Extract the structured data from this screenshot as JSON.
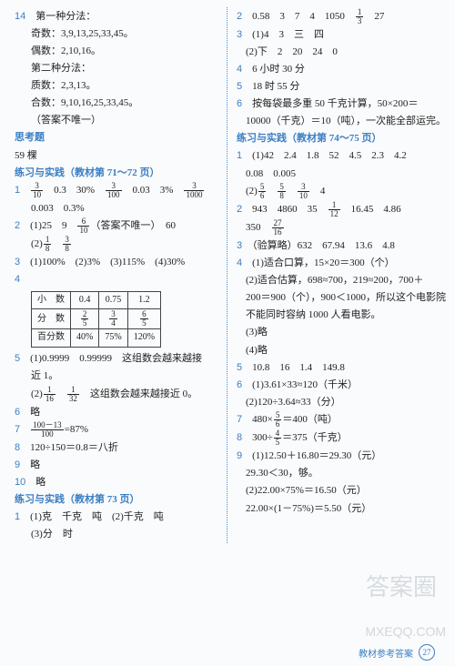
{
  "left": {
    "l14": "14",
    "l14a": "第一种分法：",
    "l14b": "奇数：3,9,13,25,33,45。",
    "l14c": "偶数：2,10,16。",
    "l14d": "第二种分法：",
    "l14e": "质数：2,3,13。",
    "l14f": "合数：9,10,16,25,33,45。",
    "l14g": "（答案不唯一）",
    "sk": "思考题",
    "sk1": "59 棵",
    "ex7172": "练习与实践（教材第 71～72 页）",
    "q1n": "1",
    "q1a": "　0.3　30%　",
    "q1b": "　0.03　3%　",
    "q1c": "0.003　0.3%",
    "q2n": "2",
    "q2a": "(1)25　9　",
    "q2a2": "（答案不唯一）　60",
    "q2b": "(2)",
    "q3n": "3",
    "q3a": "(1)100%　(2)3%　(3)115%　(4)30%",
    "q4n": "4",
    "tbl": {
      "r1": [
        "小　数",
        "0.4",
        "0.75",
        "1.2"
      ],
      "r2": [
        "分　数",
        "2/5",
        "3/4",
        "6/5"
      ],
      "r3": [
        "百分数",
        "40%",
        "75%",
        "120%"
      ]
    },
    "q5n": "5",
    "q5a": "(1)0.9999　0.99999　这组数会越来越接",
    "q5a2": "近 1。",
    "q5b": "(2)",
    "q5b2": "　这组数会越来越接近 0。",
    "q6n": "6",
    "q6a": "略",
    "q7n": "7",
    "q7a": "=87%",
    "q8n": "8",
    "q8a": "120÷150＝0.8＝八折",
    "q9n": "9",
    "q9a": "略",
    "q10n": "10",
    "q10a": "略",
    "ex73": "练习与实践（教材第 73 页）",
    "p1n": "1",
    "p1a": "(1)克　千克　吨　(2)千克　吨",
    "p1b": "(3)分　时"
  },
  "right": {
    "r2n": "2",
    "r2a": "0.58　3　7　4　1050　",
    "r2a2": "　27",
    "r3n": "3",
    "r3a": "(1)4　3　三　四",
    "r3b": "(2)下　2　20　24　0",
    "r4n": "4",
    "r4a": "6 小时 30 分",
    "r5n": "5",
    "r5a": "18 时 55 分",
    "r6n": "6",
    "r6a": "按每袋最多重 50 千克计算，50×200＝",
    "r6b": "10000（千克）＝10（吨），一次能全部运完。",
    "ex7475": "练习与实践（教材第 74～75 页）",
    "s1n": "1",
    "s1a": "(1)42　2.4　1.8　52　4.5　2.3　4.2",
    "s1b": "0.08　0.005",
    "s1c": "(2)",
    "s1c2": "　4",
    "s2n": "2",
    "s2a": "943　4860　35　",
    "s2a2": "　16.45　4.86",
    "s2b": "350　",
    "s3n": "3",
    "s3a": "（验算略）632　67.94　13.6　4.8",
    "s4n": "4",
    "s4a": "(1)适合口算，15×20＝300（个）",
    "s4b": "(2)适合估算，698≈700，219≈200，700＋",
    "s4c": "200＝900（个），900＜1000，所以这个电影院",
    "s4d": "不能同时容纳 1000 人看电影。",
    "s4e": "(3)略",
    "s4f": "(4)略",
    "s5n": "5",
    "s5a": "10.8　16　1.4　149.8",
    "s6n": "6",
    "s6a": "(1)3.61×33≈120（千米）",
    "s6b": "(2)120÷3.64≈33（分）",
    "s7n": "7",
    "s7a": "480×",
    "s7a2": "＝400（吨）",
    "s8n": "8",
    "s8a": "300÷",
    "s8a2": "＝375（千克）",
    "s9n": "9",
    "s9a": "(1)12.50＋16.80＝29.30（元）",
    "s9b": "29.30＜30，够。",
    "s9c": "(2)22.00×75%＝16.50（元）",
    "s9d": "22.00×(1－75%)＝5.50（元）"
  },
  "fractions": {
    "f3_10": {
      "n": "3",
      "d": "10"
    },
    "f3_100": {
      "n": "3",
      "d": "100"
    },
    "f3_1000": {
      "n": "3",
      "d": "1000"
    },
    "f6_10": {
      "n": "6",
      "d": "10"
    },
    "f1_8": {
      "n": "1",
      "d": "8"
    },
    "f3_8": {
      "n": "3",
      "d": "8"
    },
    "f2_5": {
      "n": "2",
      "d": "5"
    },
    "f3_4": {
      "n": "3",
      "d": "4"
    },
    "f6_5": {
      "n": "6",
      "d": "5"
    },
    "f1_16": {
      "n": "1",
      "d": "16"
    },
    "f1_32": {
      "n": "1",
      "d": "32"
    },
    "f100_13_100": {
      "n": "100－13",
      "d": "100"
    },
    "f1_3": {
      "n": "1",
      "d": "3"
    },
    "f5_6": {
      "n": "5",
      "d": "6"
    },
    "f5_8": {
      "n": "5",
      "d": "8"
    },
    "f3_10b": {
      "n": "3",
      "d": "10"
    },
    "f1_12": {
      "n": "1",
      "d": "12"
    },
    "f27_16": {
      "n": "27",
      "d": "16"
    },
    "f5_6b": {
      "n": "5",
      "d": "6"
    },
    "f4_5": {
      "n": "4",
      "d": "5"
    }
  },
  "footer": {
    "label": "教材参考答案",
    "page": "27"
  },
  "watermark": {
    "a": "答案圈",
    "b": "MXEQQ.COM"
  }
}
